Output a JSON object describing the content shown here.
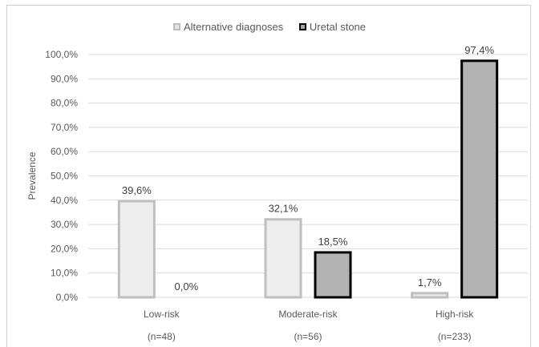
{
  "chart_data": {
    "type": "bar",
    "categories": [
      "Low-risk",
      "Moderate-risk",
      "High-risk"
    ],
    "category_sublabels": [
      "(n=48)",
      "(n=56)",
      "(n=233)"
    ],
    "series": [
      {
        "name": "Alternative diagnoses",
        "values": [
          39.6,
          32.1,
          1.7
        ],
        "labels": [
          "39,6%",
          "32,1%",
          "1,7%"
        ],
        "fill": "#eeeeee",
        "stroke": "#bfbfbf"
      },
      {
        "name": "Uretal stone",
        "values": [
          0.0,
          18.5,
          97.4
        ],
        "labels": [
          "0,0%",
          "18,5%",
          "97,4%"
        ],
        "fill": "#b3b3b3",
        "stroke": "#000000"
      }
    ],
    "ylabel": "Prevalence",
    "ylim": [
      0,
      100
    ],
    "yticks": [
      "0,0%",
      "10,0%",
      "20,0%",
      "30,0%",
      "40,0%",
      "50,0%",
      "60,0%",
      "70,0%",
      "80,0%",
      "90,0%",
      "100,0%"
    ],
    "grid": true,
    "legend_position": "top-center"
  }
}
